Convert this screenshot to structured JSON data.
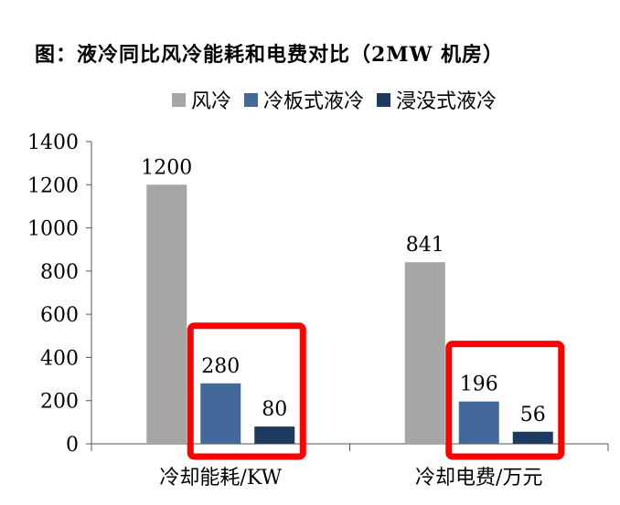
{
  "title": "图：液冷同比风冷能耗和电费对比（2MW 机房）",
  "chart_data": {
    "type": "bar",
    "categories": [
      "冷却能耗/KW",
      "冷却电费/万元"
    ],
    "series": [
      {
        "name": "风冷",
        "values": [
          1200,
          841
        ],
        "color": "#a6a6a6"
      },
      {
        "name": "冷板式液冷",
        "values": [
          280,
          196
        ],
        "color": "#42699a"
      },
      {
        "name": "浸没式液冷",
        "values": [
          80,
          56
        ],
        "color": "#1f3a5f"
      }
    ],
    "ylim": [
      0,
      1400
    ],
    "yticks": [
      0,
      200,
      400,
      600,
      800,
      1000,
      1200,
      1400
    ],
    "data_labels": true,
    "legend_position": "top",
    "highlight": {
      "color": "#ff0000",
      "series": [
        "冷板式液冷",
        "浸没式液冷"
      ]
    },
    "grid": false
  }
}
